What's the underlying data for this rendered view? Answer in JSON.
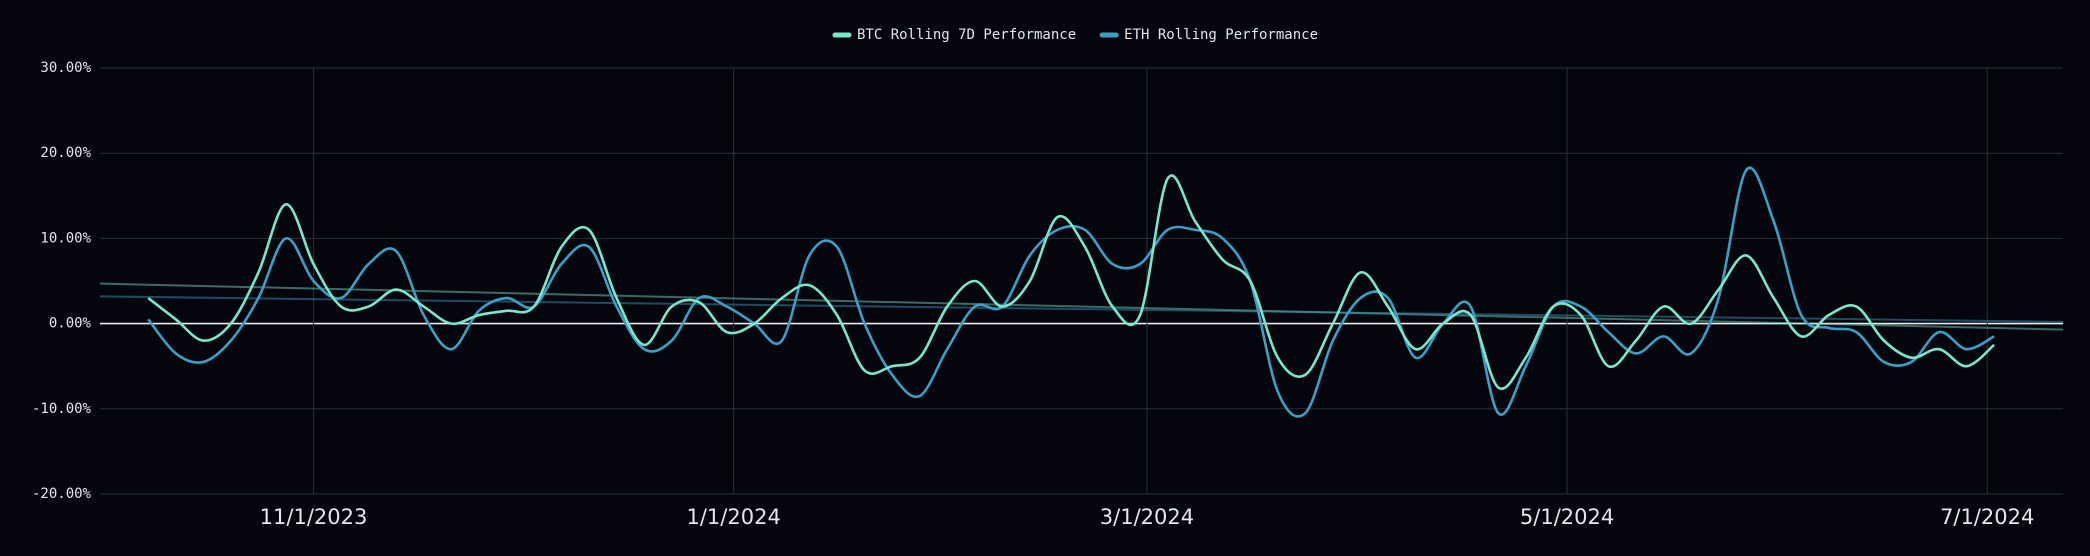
{
  "chart_data": {
    "type": "line",
    "series": [
      {
        "name": "BTC Rolling 7D Performance",
        "color": "#7be6cc",
        "values": [
          3,
          0.5,
          -2,
          0,
          6,
          14,
          7,
          2,
          2,
          4,
          2,
          0,
          1,
          1.5,
          2,
          9,
          11,
          3,
          -2.5,
          2,
          2.5,
          -1,
          0,
          3,
          4.5,
          1,
          -5.5,
          -5,
          -4,
          2,
          5,
          2,
          5,
          12.5,
          9,
          2,
          1,
          17,
          12,
          7.5,
          5,
          -4,
          -6,
          0,
          6,
          2,
          -3,
          0,
          1,
          -7.5,
          -4,
          2,
          1,
          -5,
          -2,
          2,
          0,
          4,
          8,
          3,
          -1.5,
          1,
          2,
          -2,
          -4,
          -3,
          -5,
          -2.5
        ]
      },
      {
        "name": "ETH Rolling Performance",
        "color": "#3d9fc6",
        "values": [
          0.5,
          -3.5,
          -4.5,
          -2,
          3,
          10,
          5,
          3,
          7,
          8.5,
          1,
          -3,
          1.5,
          3,
          2,
          7,
          9,
          2,
          -3,
          -2,
          3,
          2,
          0,
          -2,
          8,
          9,
          0,
          -6,
          -8.5,
          -3,
          2,
          2,
          8,
          11,
          11,
          7,
          7,
          11,
          11,
          10,
          5,
          -8,
          -10.5,
          -2,
          3,
          3,
          -4,
          0,
          2,
          -10.5,
          -5,
          2,
          2,
          -1,
          -3.5,
          -1.5,
          -3.5,
          3,
          18,
          12,
          1,
          -0.5,
          -1,
          -4.5,
          -4.5,
          -1,
          -3,
          -1.5
        ]
      }
    ],
    "x": [
      "10/8/2023",
      "10/12/2023",
      "10/16/2023",
      "10/20/2023",
      "10/24/2023",
      "10/28/2023",
      "11/1/2023",
      "11/5/2023",
      "11/9/2023",
      "11/13/2023",
      "11/17/2023",
      "11/21/2023",
      "11/25/2023",
      "11/29/2023",
      "12/3/2023",
      "12/7/2023",
      "12/11/2023",
      "12/15/2023",
      "12/19/2023",
      "12/23/2023",
      "12/27/2023",
      "12/31/2023",
      "1/4/2024",
      "1/8/2024",
      "1/12/2024",
      "1/16/2024",
      "1/20/2024",
      "1/24/2024",
      "1/28/2024",
      "2/1/2024",
      "2/5/2024",
      "2/9/2024",
      "2/13/2024",
      "2/17/2024",
      "2/21/2024",
      "2/25/2024",
      "2/29/2024",
      "3/4/2024",
      "3/8/2024",
      "3/12/2024",
      "3/16/2024",
      "3/20/2024",
      "3/24/2024",
      "3/28/2024",
      "4/1/2024",
      "4/5/2024",
      "4/9/2024",
      "4/13/2024",
      "4/17/2024",
      "4/21/2024",
      "4/25/2024",
      "4/29/2024",
      "5/3/2024",
      "5/7/2024",
      "5/11/2024",
      "5/15/2024",
      "5/19/2024",
      "5/23/2024",
      "5/27/2024",
      "5/31/2024",
      "6/4/2024",
      "6/8/2024",
      "6/12/2024",
      "6/16/2024",
      "6/20/2024",
      "6/24/2024",
      "6/28/2024",
      "7/2/2024"
    ],
    "trendlines": [
      {
        "color": "#7be6cc",
        "x": [
          "10/1/2023",
          "7/12/2024"
        ],
        "values": [
          4.7,
          -0.7
        ]
      },
      {
        "color": "#3d9fc6",
        "x": [
          "10/1/2023",
          "7/12/2024"
        ],
        "values": [
          3.2,
          0.2
        ]
      }
    ],
    "xlim": [
      "10/1/2023",
      "7/12/2024"
    ],
    "xticks": [
      "11/1/2023",
      "1/1/2024",
      "3/1/2024",
      "5/1/2024",
      "7/1/2024"
    ],
    "ylim": [
      -20,
      30
    ],
    "yticks": [
      {
        "value": -20,
        "label": "-20.00%"
      },
      {
        "value": -10,
        "label": "-10.00%"
      },
      {
        "value": 0,
        "label": "0.00%"
      },
      {
        "value": 10,
        "label": "10.00%"
      },
      {
        "value": 20,
        "label": "20.00%"
      },
      {
        "value": 30,
        "label": "30.00%"
      }
    ],
    "grid": true,
    "legend": "top"
  }
}
